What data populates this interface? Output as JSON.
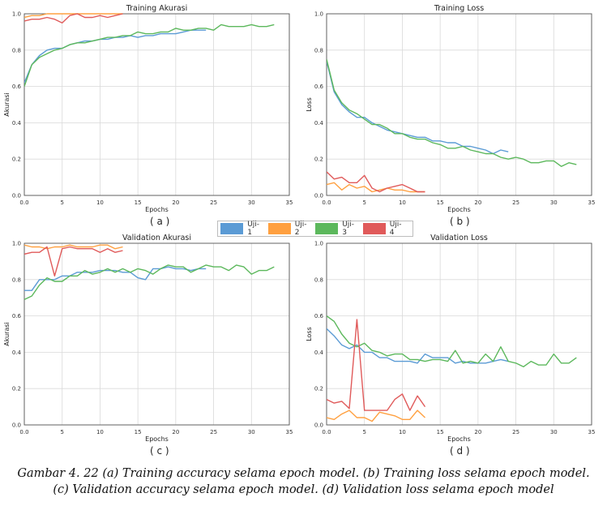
{
  "colors": {
    "Uji-1": "#5b9bd5",
    "Uji-2": "#ffa040",
    "Uji-3": "#5cb85c",
    "Uji-4": "#e05a5a",
    "grid": "#d9d9d9",
    "axis": "#555555"
  },
  "legend": {
    "items": [
      "Uji-1",
      "Uji-2",
      "Uji-3",
      "Uji-4"
    ]
  },
  "panel_labels": [
    "( a )",
    "( b )",
    "( c )",
    "( d )"
  ],
  "caption": {
    "line1": "Gambar 4. 22 (a) Training accuracy selama epoch model. (b) Training loss selama epoch model.",
    "line2": "(c) Validation accuracy selama epoch model. (d) Validation loss selama epoch model"
  },
  "chart_data": [
    {
      "type": "line",
      "title": "Training Akurasi",
      "xlabel": "Epochs",
      "ylabel": "Akurasi",
      "xlim": [
        0,
        35
      ],
      "ylim": [
        0,
        1.0
      ],
      "xticks": [
        0,
        5,
        10,
        15,
        20,
        25,
        30,
        35
      ],
      "yticks": [
        0.0,
        0.2,
        0.4,
        0.6,
        0.8,
        1.0
      ],
      "grid": true,
      "series": [
        {
          "name": "Uji-1",
          "values": [
            0.62,
            0.72,
            0.77,
            0.8,
            0.81,
            0.81,
            0.83,
            0.84,
            0.85,
            0.85,
            0.86,
            0.86,
            0.87,
            0.87,
            0.88,
            0.87,
            0.88,
            0.88,
            0.89,
            0.89,
            0.89,
            0.9,
            0.91,
            0.91,
            0.91
          ]
        },
        {
          "name": "Uji-2",
          "values": [
            0.98,
            0.99,
            0.99,
            1.0,
            1.0,
            1.0,
            1.0,
            1.0,
            1.0,
            1.0,
            1.0,
            1.0,
            1.0,
            1.0
          ]
        },
        {
          "name": "Uji-3",
          "values": [
            0.6,
            0.72,
            0.76,
            0.78,
            0.8,
            0.81,
            0.83,
            0.84,
            0.84,
            0.85,
            0.86,
            0.87,
            0.87,
            0.88,
            0.88,
            0.9,
            0.89,
            0.89,
            0.9,
            0.9,
            0.92,
            0.91,
            0.91,
            0.92,
            0.92,
            0.91,
            0.94,
            0.93,
            0.93,
            0.93,
            0.94,
            0.93,
            0.93,
            0.94
          ]
        },
        {
          "name": "Uji-4",
          "values": [
            0.96,
            0.97,
            0.97,
            0.98,
            0.97,
            0.95,
            0.99,
            1.0,
            0.98,
            0.98,
            0.99,
            0.98,
            0.99,
            1.0
          ]
        }
      ]
    },
    {
      "type": "line",
      "title": "Training Loss",
      "xlabel": "Epochs",
      "ylabel": "Loss",
      "xlim": [
        0,
        35
      ],
      "ylim": [
        0,
        1.0
      ],
      "xticks": [
        0,
        5,
        10,
        15,
        20,
        25,
        30,
        35
      ],
      "yticks": [
        0.0,
        0.2,
        0.4,
        0.6,
        0.8,
        1.0
      ],
      "grid": true,
      "series": [
        {
          "name": "Uji-1",
          "values": [
            0.74,
            0.57,
            0.5,
            0.46,
            0.43,
            0.43,
            0.4,
            0.38,
            0.36,
            0.35,
            0.34,
            0.33,
            0.32,
            0.32,
            0.3,
            0.3,
            0.29,
            0.29,
            0.27,
            0.27,
            0.26,
            0.25,
            0.23,
            0.25,
            0.24
          ]
        },
        {
          "name": "Uji-2",
          "values": [
            0.06,
            0.07,
            0.03,
            0.06,
            0.04,
            0.05,
            0.02,
            0.03,
            0.04,
            0.03,
            0.03,
            0.02,
            0.02,
            0.02
          ]
        },
        {
          "name": "Uji-3",
          "values": [
            0.75,
            0.58,
            0.51,
            0.47,
            0.45,
            0.42,
            0.39,
            0.39,
            0.37,
            0.34,
            0.34,
            0.32,
            0.31,
            0.31,
            0.29,
            0.28,
            0.26,
            0.26,
            0.27,
            0.25,
            0.24,
            0.23,
            0.23,
            0.21,
            0.2,
            0.21,
            0.2,
            0.18,
            0.18,
            0.19,
            0.19,
            0.16,
            0.18,
            0.17
          ]
        },
        {
          "name": "Uji-4",
          "values": [
            0.13,
            0.09,
            0.1,
            0.07,
            0.07,
            0.11,
            0.04,
            0.02,
            0.04,
            0.05,
            0.06,
            0.04,
            0.02,
            0.02
          ]
        }
      ]
    },
    {
      "type": "line",
      "title": "Validation Akurasi",
      "xlabel": "Epochs",
      "ylabel": "Akurasi",
      "xlim": [
        0,
        35
      ],
      "ylim": [
        0,
        1.0
      ],
      "xticks": [
        0,
        5,
        10,
        15,
        20,
        25,
        30,
        35
      ],
      "yticks": [
        0.0,
        0.2,
        0.4,
        0.6,
        0.8,
        1.0
      ],
      "grid": true,
      "series": [
        {
          "name": "Uji-1",
          "values": [
            0.74,
            0.74,
            0.8,
            0.8,
            0.8,
            0.82,
            0.82,
            0.84,
            0.84,
            0.84,
            0.85,
            0.85,
            0.85,
            0.84,
            0.84,
            0.81,
            0.8,
            0.86,
            0.86,
            0.87,
            0.86,
            0.86,
            0.85,
            0.86,
            0.86
          ]
        },
        {
          "name": "Uji-2",
          "values": [
            0.99,
            0.98,
            0.98,
            0.97,
            0.98,
            0.98,
            0.99,
            0.98,
            0.98,
            0.98,
            0.99,
            0.99,
            0.97,
            0.98
          ]
        },
        {
          "name": "Uji-3",
          "values": [
            0.69,
            0.71,
            0.77,
            0.81,
            0.79,
            0.79,
            0.82,
            0.82,
            0.85,
            0.83,
            0.84,
            0.86,
            0.84,
            0.86,
            0.84,
            0.86,
            0.85,
            0.83,
            0.86,
            0.88,
            0.87,
            0.87,
            0.84,
            0.86,
            0.88,
            0.87,
            0.87,
            0.85,
            0.88,
            0.87,
            0.83,
            0.85,
            0.85,
            0.87
          ]
        },
        {
          "name": "Uji-4",
          "values": [
            0.94,
            0.95,
            0.95,
            0.98,
            0.82,
            0.97,
            0.98,
            0.97,
            0.97,
            0.97,
            0.95,
            0.97,
            0.95,
            0.96
          ]
        }
      ]
    },
    {
      "type": "line",
      "title": "Validation Loss",
      "xlabel": "Epochs",
      "ylabel": "Loss",
      "xlim": [
        0,
        35
      ],
      "ylim": [
        0,
        1.0
      ],
      "xticks": [
        0,
        5,
        10,
        15,
        20,
        25,
        30,
        35
      ],
      "yticks": [
        0.0,
        0.2,
        0.4,
        0.6,
        0.8,
        1.0
      ],
      "grid": true,
      "series": [
        {
          "name": "Uji-1",
          "values": [
            0.53,
            0.49,
            0.44,
            0.42,
            0.44,
            0.4,
            0.4,
            0.37,
            0.37,
            0.35,
            0.35,
            0.35,
            0.34,
            0.39,
            0.37,
            0.37,
            0.37,
            0.34,
            0.35,
            0.34,
            0.34,
            0.34,
            0.35,
            0.36,
            0.35
          ]
        },
        {
          "name": "Uji-2",
          "values": [
            0.04,
            0.03,
            0.06,
            0.08,
            0.04,
            0.04,
            0.02,
            0.07,
            0.06,
            0.05,
            0.03,
            0.03,
            0.08,
            0.04
          ]
        },
        {
          "name": "Uji-3",
          "values": [
            0.6,
            0.57,
            0.5,
            0.45,
            0.43,
            0.45,
            0.41,
            0.4,
            0.38,
            0.39,
            0.39,
            0.36,
            0.36,
            0.35,
            0.36,
            0.36,
            0.35,
            0.41,
            0.34,
            0.35,
            0.34,
            0.39,
            0.35,
            0.43,
            0.35,
            0.34,
            0.32,
            0.35,
            0.33,
            0.33,
            0.39,
            0.34,
            0.34,
            0.37
          ]
        },
        {
          "name": "Uji-4",
          "values": [
            0.14,
            0.12,
            0.13,
            0.09,
            0.58,
            0.08,
            0.08,
            0.08,
            0.08,
            0.14,
            0.17,
            0.08,
            0.16,
            0.1
          ]
        }
      ]
    }
  ]
}
